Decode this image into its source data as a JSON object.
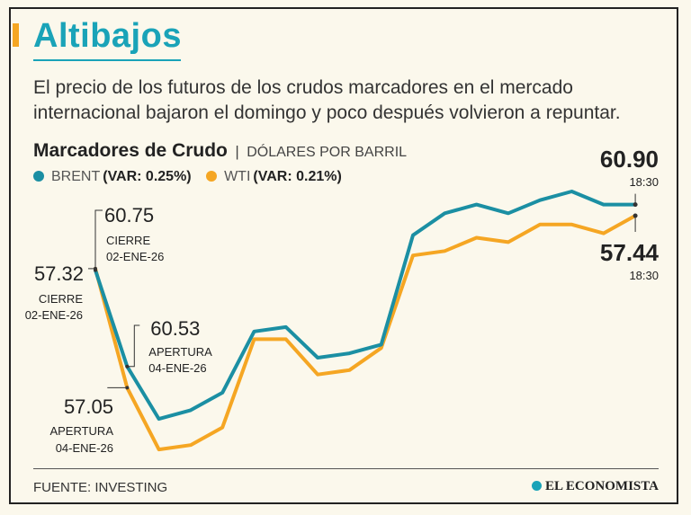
{
  "header": {
    "title": "Altibajos",
    "subtitle": "El precio de los futuros de los crudos marcadores en el mercado internacional bajaron el domingo y poco después volvieron a repuntar."
  },
  "chart_header": {
    "title": "Marcadores de Crudo",
    "separator": "|",
    "units": "DÓLARES POR BARRIL"
  },
  "legend": [
    {
      "name": "BRENT",
      "var": "(VAR: 0.25%)",
      "color": "#1b8fa3"
    },
    {
      "name": "WTI",
      "var": "(VAR: 0.21%)",
      "color": "#f5a623"
    }
  ],
  "chart_data": {
    "type": "line",
    "title": "Marcadores de Crudo",
    "ylabel": "DÓLARES POR BARRIL",
    "x": [
      0,
      1,
      2,
      3,
      4,
      5,
      6,
      7,
      8,
      9,
      10,
      11,
      12,
      13,
      14,
      15,
      16,
      17
    ],
    "series": [
      {
        "name": "BRENT",
        "color": "#1b8fa3",
        "values": [
          60.75,
          60.53,
          60.41,
          60.43,
          60.47,
          60.61,
          60.62,
          60.55,
          60.56,
          60.58,
          60.83,
          60.88,
          60.9,
          60.88,
          60.91,
          60.93,
          60.9,
          60.9
        ]
      },
      {
        "name": "WTI",
        "color": "#f5a623",
        "values": [
          57.32,
          57.05,
          56.91,
          56.92,
          56.96,
          57.16,
          57.16,
          57.08,
          57.09,
          57.14,
          57.35,
          57.36,
          57.39,
          57.38,
          57.42,
          57.42,
          57.4,
          57.44
        ]
      }
    ],
    "annotations": [
      {
        "series": "BRENT",
        "index": 0,
        "value": "60.75",
        "line1": "CIERRE",
        "line2": "02-ENE-26"
      },
      {
        "series": "WTI",
        "index": 0,
        "value": "57.32",
        "line1": "CIERRE",
        "line2": "02-ENE-26"
      },
      {
        "series": "BRENT",
        "index": 1,
        "value": "60.53",
        "line1": "APERTURA",
        "line2": "04-ENE-26"
      },
      {
        "series": "WTI",
        "index": 1,
        "value": "57.05",
        "line1": "APERTURA",
        "line2": "04-ENE-26"
      },
      {
        "series": "BRENT",
        "index": 17,
        "value": "60.90",
        "line1": "18:30"
      },
      {
        "series": "WTI",
        "index": 17,
        "value": "57.44",
        "line1": "18:30"
      }
    ]
  },
  "footer": {
    "source": "FUENTE: INVESTING",
    "brand": "EL ECONOMISTA"
  }
}
